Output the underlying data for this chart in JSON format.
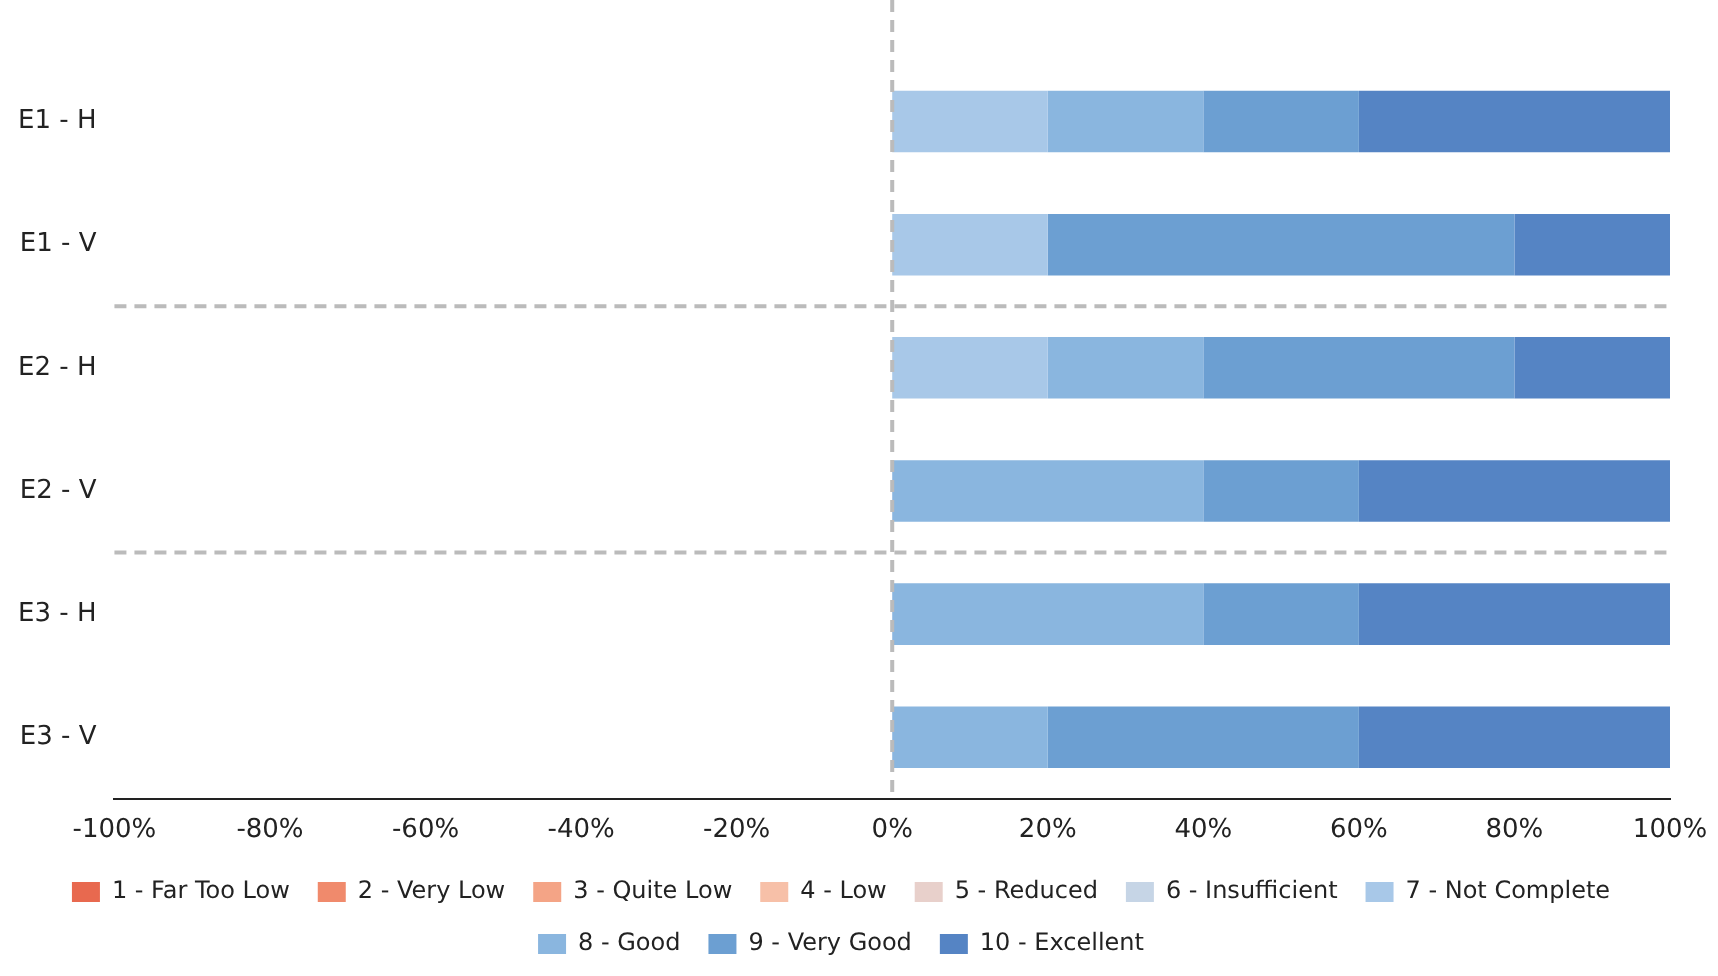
{
  "chart_data": {
    "type": "bar",
    "orientation": "horizontal",
    "stacked": true,
    "categories": [
      "E1 - H",
      "E1 - V",
      "E2 - H",
      "E2 - V",
      "E3 - H",
      "E3 - V"
    ],
    "series": [
      {
        "name": "1 - Far Too Low",
        "color": "#e8694f",
        "values": [
          0,
          0,
          0,
          0,
          0,
          0
        ]
      },
      {
        "name": "2 - Very Low",
        "color": "#f08a6c",
        "values": [
          0,
          0,
          0,
          0,
          0,
          0
        ]
      },
      {
        "name": "3 - Quite Low",
        "color": "#f4a486",
        "values": [
          0,
          0,
          0,
          0,
          0,
          0
        ]
      },
      {
        "name": "4 - Low",
        "color": "#f7c0a8",
        "values": [
          0,
          0,
          0,
          0,
          0,
          0
        ]
      },
      {
        "name": "5 - Reduced",
        "color": "#e8d0cb",
        "values": [
          0,
          0,
          0,
          0,
          0,
          0
        ]
      },
      {
        "name": "6 - Insufficient",
        "color": "#c6d5e6",
        "values": [
          0,
          0,
          0,
          0,
          0,
          0
        ]
      },
      {
        "name": "7 - Not Complete",
        "color": "#a8c8e8",
        "values": [
          20,
          20,
          20,
          0,
          0,
          0
        ]
      },
      {
        "name": "8 - Good",
        "color": "#8ab6df",
        "values": [
          20,
          0,
          20,
          40,
          40,
          20
        ]
      },
      {
        "name": "9 - Very Good",
        "color": "#6c9fd2",
        "values": [
          20,
          60,
          40,
          20,
          20,
          40
        ]
      },
      {
        "name": "10 - Excellent",
        "color": "#5584c4",
        "values": [
          40,
          20,
          20,
          40,
          40,
          40
        ]
      }
    ],
    "xlim": [
      -100,
      100
    ],
    "xticks": [
      {
        "value": -100,
        "label": "-100%"
      },
      {
        "value": -80,
        "label": "-80%"
      },
      {
        "value": -60,
        "label": "-60%"
      },
      {
        "value": -40,
        "label": "-40%"
      },
      {
        "value": -20,
        "label": "-20%"
      },
      {
        "value": 0,
        "label": "0%"
      },
      {
        "value": 20,
        "label": "20%"
      },
      {
        "value": 40,
        "label": "40%"
      },
      {
        "value": 60,
        "label": "60%"
      },
      {
        "value": 80,
        "label": "80%"
      },
      {
        "value": 100,
        "label": "100%"
      }
    ],
    "ref_lines": [
      {
        "axis": "x",
        "value": 0,
        "color": "#bbbbbb",
        "line_style": "dashed"
      }
    ],
    "grid": false,
    "legend": "bottom"
  }
}
